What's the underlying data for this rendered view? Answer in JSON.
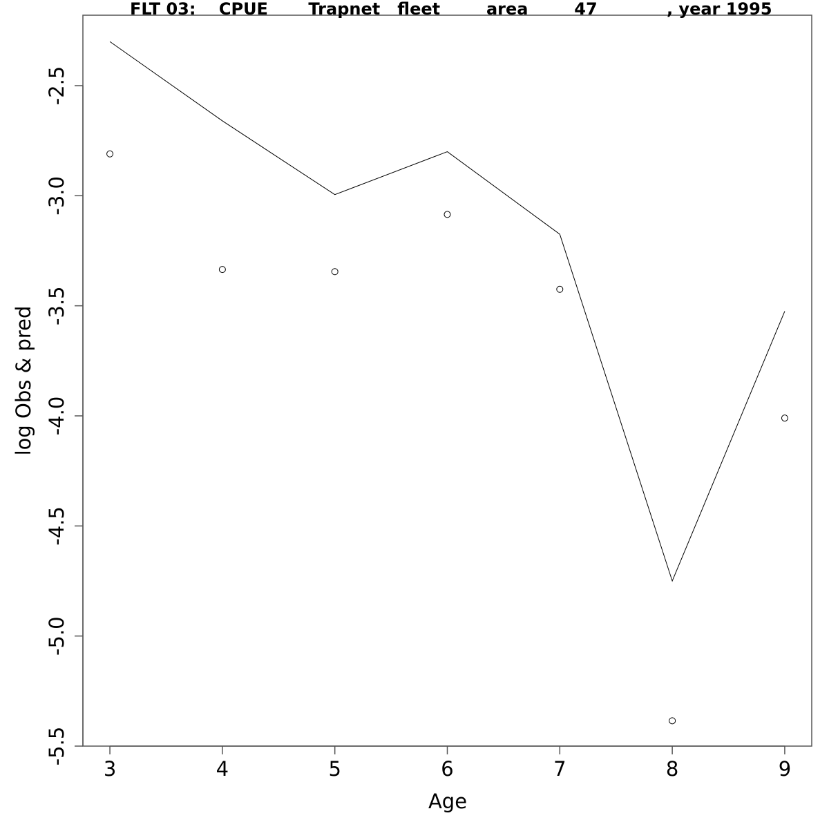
{
  "chart_data": {
    "type": "line",
    "title": "FLT 03:    CPUE       Trapnet   fleet        area        47            , year 1995",
    "xlabel": "Age",
    "ylabel": "log Obs & pred",
    "xlim": [
      2.76,
      9.24
    ],
    "ylim": [
      -5.5,
      -2.18
    ],
    "x": [
      3,
      4,
      5,
      6,
      7,
      8,
      9
    ],
    "x_ticks": [
      "3",
      "4",
      "5",
      "6",
      "7",
      "8",
      "9"
    ],
    "y_ticks": [
      "-5.5",
      "-5.0",
      "-4.5",
      "-4.0",
      "-3.5",
      "-3.0",
      "-2.5"
    ],
    "y_tick_values": [
      -5.5,
      -5.0,
      -4.5,
      -4.0,
      -3.5,
      -3.0,
      -2.5
    ],
    "series": [
      {
        "style": "line",
        "values": [
          -2.3,
          -2.66,
          -2.995,
          -2.8,
          -3.175,
          -4.75,
          -3.525
        ]
      },
      {
        "style": "points",
        "values": [
          -2.81,
          -3.335,
          -3.345,
          -3.085,
          -3.425,
          -5.385,
          -4.01
        ]
      }
    ],
    "grid": false,
    "legend": "none"
  }
}
